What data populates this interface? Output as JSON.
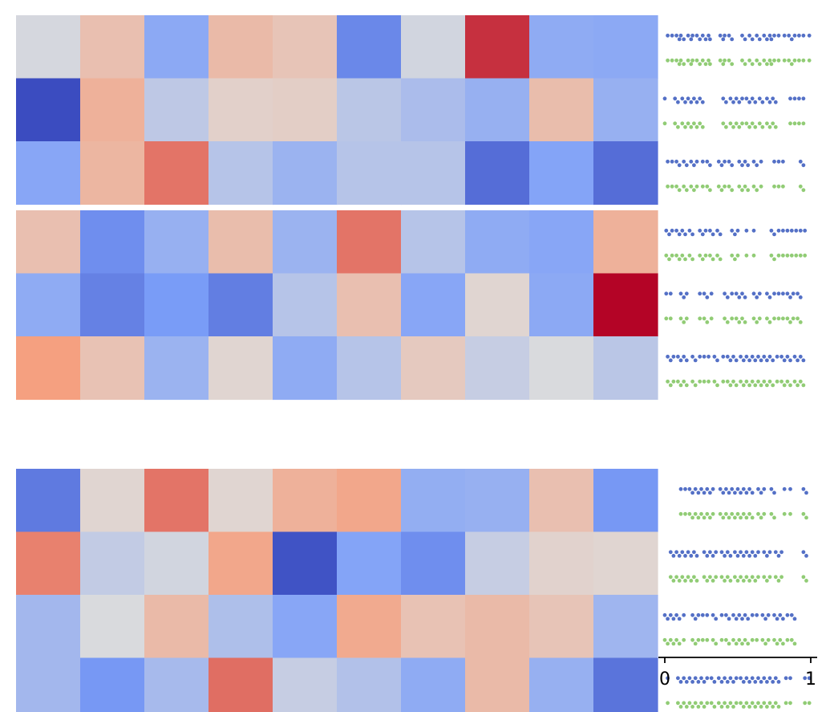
{
  "chart_data": {
    "type": "heatmap",
    "colormap": "coolwarm",
    "value_range": [
      0,
      1
    ],
    "groups": [
      {
        "rows": [
          [
            0.48,
            0.62,
            0.29,
            0.64,
            0.6,
            0.18,
            0.47,
            0.93,
            0.3,
            0.29
          ],
          [
            0.0,
            0.68,
            0.42,
            0.55,
            0.56,
            0.41,
            0.37,
            0.32,
            0.63,
            0.32
          ],
          [
            0.28,
            0.66,
            0.82,
            0.4,
            0.33,
            0.4,
            0.4,
            0.1,
            0.27,
            0.1
          ]
        ]
      },
      {
        "rows": [
          [
            0.62,
            0.2,
            0.32,
            0.63,
            0.33,
            0.82,
            0.4,
            0.3,
            0.28,
            0.68
          ],
          [
            0.3,
            0.16,
            0.24,
            0.15,
            0.4,
            0.62,
            0.28,
            0.53,
            0.29,
            1.0
          ],
          [
            0.75,
            0.61,
            0.33,
            0.53,
            0.3,
            0.4,
            0.58,
            0.44,
            0.49,
            0.41
          ]
        ]
      },
      {
        "rows": [
          [
            0.14,
            0.53,
            0.82,
            0.53,
            0.68,
            0.72,
            0.31,
            0.32,
            0.62,
            0.23
          ],
          [
            0.8,
            0.43,
            0.47,
            0.72,
            0.02,
            0.27,
            0.2,
            0.44,
            0.54,
            0.53
          ],
          [
            0.35,
            0.49,
            0.64,
            0.38,
            0.28,
            0.71,
            0.61,
            0.64,
            0.6,
            0.34
          ],
          [
            0.35,
            0.23,
            0.36,
            0.83,
            0.44,
            0.39,
            0.3,
            0.64,
            0.32,
            0.12
          ]
        ]
      }
    ],
    "swarm": {
      "x_axis": {
        "xlim": [
          0,
          1
        ],
        "ticks": [
          0,
          1
        ],
        "tick_labels": [
          "0",
          "1"
        ]
      },
      "series": [
        {
          "color": "#5470c6"
        },
        {
          "color": "#91cc75"
        }
      ],
      "rows": [
        [
          0.02,
          0.05,
          0.08,
          0.1,
          0.11,
          0.13,
          0.16,
          0.18,
          0.19,
          0.22,
          0.24,
          0.26,
          0.28,
          0.3,
          0.31,
          0.38,
          0.4,
          0.41,
          0.44,
          0.46,
          0.53,
          0.55,
          0.58,
          0.6,
          0.63,
          0.65,
          0.68,
          0.7,
          0.72,
          0.73,
          0.75,
          0.78,
          0.82,
          0.85,
          0.87,
          0.89,
          0.92,
          0.95,
          0.99
        ],
        [
          0.0,
          0.07,
          0.09,
          0.12,
          0.14,
          0.16,
          0.18,
          0.2,
          0.22,
          0.24,
          0.26,
          0.4,
          0.42,
          0.45,
          0.47,
          0.49,
          0.51,
          0.53,
          0.56,
          0.58,
          0.6,
          0.62,
          0.65,
          0.67,
          0.7,
          0.72,
          0.74,
          0.76,
          0.86,
          0.89,
          0.92,
          0.95
        ],
        [
          0.02,
          0.05,
          0.08,
          0.1,
          0.13,
          0.15,
          0.18,
          0.2,
          0.22,
          0.26,
          0.29,
          0.31,
          0.37,
          0.39,
          0.41,
          0.44,
          0.46,
          0.51,
          0.53,
          0.55,
          0.57,
          0.61,
          0.63,
          0.66,
          0.75,
          0.78,
          0.81,
          0.93,
          0.95
        ],
        [
          0.01,
          0.03,
          0.05,
          0.08,
          0.1,
          0.12,
          0.14,
          0.17,
          0.19,
          0.24,
          0.26,
          0.28,
          0.31,
          0.33,
          0.36,
          0.38,
          0.46,
          0.48,
          0.5,
          0.56,
          0.61,
          0.73,
          0.75,
          0.78,
          0.81,
          0.84,
          0.87,
          0.9,
          0.93,
          0.96
        ],
        [
          0.01,
          0.04,
          0.11,
          0.13,
          0.15,
          0.24,
          0.27,
          0.29,
          0.32,
          0.41,
          0.43,
          0.46,
          0.49,
          0.51,
          0.53,
          0.55,
          0.61,
          0.63,
          0.65,
          0.7,
          0.72,
          0.75,
          0.78,
          0.81,
          0.84,
          0.86,
          0.88,
          0.91,
          0.93
        ],
        [
          0.02,
          0.04,
          0.06,
          0.09,
          0.11,
          0.13,
          0.15,
          0.19,
          0.21,
          0.24,
          0.27,
          0.3,
          0.34,
          0.36,
          0.4,
          0.43,
          0.45,
          0.47,
          0.49,
          0.52,
          0.54,
          0.56,
          0.58,
          0.6,
          0.62,
          0.64,
          0.66,
          0.68,
          0.7,
          0.72,
          0.74,
          0.77,
          0.8,
          0.82,
          0.84,
          0.86,
          0.89,
          0.91,
          0.93,
          0.95
        ],
        [
          0.11,
          0.14,
          0.17,
          0.19,
          0.21,
          0.23,
          0.25,
          0.27,
          0.29,
          0.31,
          0.33,
          0.38,
          0.4,
          0.42,
          0.44,
          0.46,
          0.48,
          0.5,
          0.52,
          0.54,
          0.56,
          0.58,
          0.6,
          0.64,
          0.66,
          0.68,
          0.73,
          0.75,
          0.82,
          0.86,
          0.95,
          0.97
        ],
        [
          0.04,
          0.06,
          0.08,
          0.1,
          0.12,
          0.14,
          0.16,
          0.18,
          0.2,
          0.22,
          0.27,
          0.29,
          0.31,
          0.33,
          0.35,
          0.39,
          0.41,
          0.43,
          0.45,
          0.48,
          0.5,
          0.52,
          0.54,
          0.56,
          0.58,
          0.6,
          0.62,
          0.64,
          0.68,
          0.7,
          0.72,
          0.76,
          0.78,
          0.8,
          0.95,
          0.97
        ],
        [
          0.0,
          0.02,
          0.04,
          0.06,
          0.08,
          0.1,
          0.13,
          0.19,
          0.21,
          0.23,
          0.26,
          0.29,
          0.33,
          0.35,
          0.39,
          0.42,
          0.44,
          0.47,
          0.49,
          0.51,
          0.53,
          0.55,
          0.57,
          0.6,
          0.63,
          0.67,
          0.69,
          0.71,
          0.75,
          0.77,
          0.79,
          0.81,
          0.84,
          0.87,
          0.89
        ],
        [
          0.02,
          0.09,
          0.11,
          0.13,
          0.15,
          0.17,
          0.19,
          0.21,
          0.23,
          0.25,
          0.27,
          0.29,
          0.32,
          0.34,
          0.37,
          0.39,
          0.41,
          0.43,
          0.45,
          0.47,
          0.49,
          0.52,
          0.54,
          0.56,
          0.58,
          0.6,
          0.62,
          0.64,
          0.66,
          0.68,
          0.7,
          0.72,
          0.74,
          0.76,
          0.78,
          0.83,
          0.86,
          0.96,
          0.99
        ]
      ]
    }
  }
}
